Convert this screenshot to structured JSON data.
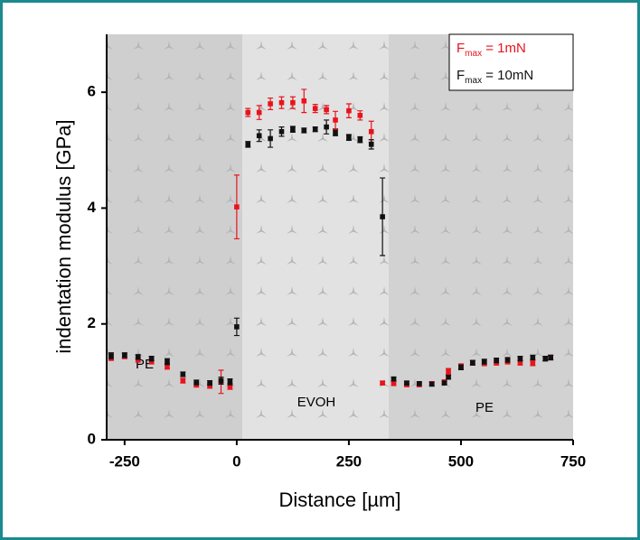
{
  "chart_data": {
    "type": "scatter",
    "x_label": "Distance [µm]",
    "y_label": "indentation modulus [GPa]",
    "xlim": [
      -290,
      750
    ],
    "xticks": [
      -250,
      0,
      250,
      500,
      750
    ],
    "ylim": [
      0,
      7
    ],
    "yticks": [
      0,
      2,
      4,
      6
    ],
    "annotations": [
      "PE",
      "EVOH",
      "PE"
    ],
    "series": [
      {
        "name": "Fmax = 1mN",
        "color": "#e8141b",
        "x": [
          -280,
          -250,
          -220,
          -190,
          -155,
          -120,
          -90,
          -60,
          -35,
          -15,
          0,
          25,
          50,
          75,
          100,
          125,
          150,
          175,
          200,
          220,
          250,
          275,
          300,
          325,
          350,
          379,
          407,
          435,
          463,
          472,
          500,
          526,
          552,
          579,
          604,
          632,
          660,
          700
        ],
        "values": [
          1.42,
          1.44,
          1.38,
          1.35,
          1.27,
          1.02,
          0.95,
          0.93,
          1.0,
          0.92,
          4.02,
          5.65,
          5.65,
          5.8,
          5.82,
          5.82,
          5.85,
          5.72,
          5.7,
          5.52,
          5.68,
          5.6,
          5.32,
          0.98,
          0.97,
          0.95,
          0.95,
          0.97,
          1.0,
          1.18,
          1.27,
          1.33,
          1.32,
          1.33,
          1.35,
          1.33,
          1.32,
          1.42
        ],
        "errors": [
          0.05,
          0.04,
          0.04,
          0.04,
          0.05,
          0.04,
          0.04,
          0.04,
          0.2,
          0.05,
          0.55,
          0.07,
          0.12,
          0.1,
          0.1,
          0.1,
          0.2,
          0.07,
          0.07,
          0.15,
          0.12,
          0.08,
          0.18,
          0.03,
          0.03,
          0.03,
          0.03,
          0.03,
          0.03,
          0.05,
          0.04,
          0.04,
          0.04,
          0.04,
          0.04,
          0.04,
          0.04,
          0.04
        ]
      },
      {
        "name": "Fmax = 10mN",
        "color": "#111111",
        "x": [
          -280,
          -250,
          -220,
          -190,
          -155,
          -120,
          -90,
          -60,
          -35,
          -15,
          0,
          25,
          50,
          75,
          100,
          125,
          150,
          175,
          200,
          220,
          250,
          275,
          300,
          325,
          350,
          379,
          407,
          435,
          463,
          472,
          500,
          526,
          552,
          579,
          604,
          632,
          660,
          688,
          700
        ],
        "values": [
          1.45,
          1.46,
          1.43,
          1.4,
          1.35,
          1.13,
          0.99,
          0.98,
          1.02,
          1.0,
          1.95,
          5.1,
          5.25,
          5.2,
          5.32,
          5.36,
          5.34,
          5.36,
          5.4,
          5.3,
          5.22,
          5.18,
          5.1,
          3.85,
          1.05,
          0.98,
          0.97,
          0.96,
          0.98,
          1.08,
          1.25,
          1.33,
          1.35,
          1.37,
          1.38,
          1.4,
          1.42,
          1.4,
          1.42
        ],
        "errors": [
          0.05,
          0.04,
          0.04,
          0.04,
          0.05,
          0.04,
          0.04,
          0.04,
          0.06,
          0.05,
          0.15,
          0.05,
          0.1,
          0.15,
          0.08,
          0.05,
          0.04,
          0.04,
          0.12,
          0.05,
          0.05,
          0.05,
          0.08,
          0.67,
          0.03,
          0.03,
          0.03,
          0.03,
          0.03,
          0.03,
          0.04,
          0.04,
          0.04,
          0.04,
          0.04,
          0.04,
          0.04,
          0.04,
          0.04
        ]
      }
    ]
  }
}
